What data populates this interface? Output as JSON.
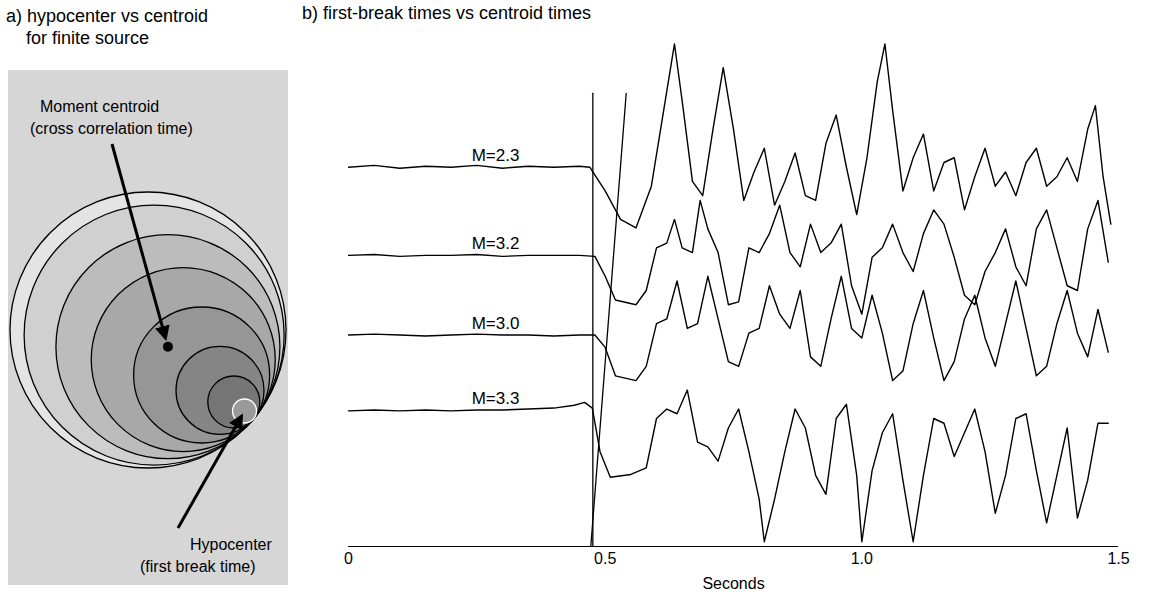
{
  "diagram": {
    "title": "a) hypocenter vs centroid for finite source",
    "centroid_label": [
      "Moment centroid",
      "(cross correlation time)"
    ],
    "hypocenter_label": [
      "Hypocenter",
      "(first break time)"
    ]
  },
  "chart_data": {
    "type": "line",
    "title": "b) first-break times vs centroid times",
    "xlabel": "Seconds",
    "xlim": [
      0,
      1.5
    ],
    "xticks": [
      0,
      0.5,
      {
        "value": 1,
        "label": "1.0"
      },
      1.5
    ],
    "ylim": [
      0,
      54
    ],
    "tick_labels": "x",
    "series": [
      {
        "name": "M=2.3",
        "color": "#000000",
        "x": [
          0.0,
          0.05,
          0.1,
          0.15,
          0.2,
          0.25,
          0.3,
          0.35,
          0.4,
          0.45,
          0.47,
          0.5,
          0.53,
          0.56,
          0.59,
          0.62,
          0.635,
          0.65,
          0.67,
          0.69,
          0.71,
          0.73,
          0.75,
          0.77,
          0.79,
          0.81,
          0.83,
          0.85,
          0.87,
          0.89,
          0.91,
          0.93,
          0.95,
          0.97,
          0.99,
          1.01,
          1.03,
          1.045,
          1.06,
          1.08,
          1.1,
          1.12,
          1.14,
          1.16,
          1.18,
          1.2,
          1.22,
          1.24,
          1.26,
          1.28,
          1.3,
          1.32,
          1.34,
          1.36,
          1.38,
          1.4,
          1.42,
          1.44,
          1.455,
          1.47,
          1.485
        ],
        "values": [
          40.0,
          40.2,
          39.9,
          40.1,
          40.0,
          40.2,
          39.9,
          40.1,
          40.0,
          40.1,
          40.0,
          37.5,
          34.5,
          33.6,
          38.0,
          48.0,
          53.0,
          47.0,
          38.5,
          37.0,
          44.0,
          50.5,
          44.0,
          36.5,
          39.5,
          42.0,
          36.0,
          38.5,
          41.5,
          37.0,
          36.5,
          42.5,
          45.5,
          40.0,
          35.0,
          41.0,
          49.0,
          53.0,
          46.0,
          37.5,
          41.0,
          43.5,
          37.5,
          40.5,
          41.0,
          35.5,
          39.0,
          42.0,
          38.0,
          39.5,
          37.0,
          40.5,
          42.0,
          38.0,
          39.0,
          41.0,
          38.5,
          44.0,
          46.5,
          39.0,
          34.0
        ]
      },
      {
        "name": "M=3.2",
        "color": "#000000",
        "x": [
          0.0,
          0.05,
          0.1,
          0.15,
          0.2,
          0.25,
          0.3,
          0.35,
          0.4,
          0.45,
          0.48,
          0.5,
          0.52,
          0.56,
          0.58,
          0.6,
          0.62,
          0.635,
          0.65,
          0.67,
          0.685,
          0.7,
          0.72,
          0.74,
          0.76,
          0.78,
          0.8,
          0.82,
          0.84,
          0.86,
          0.88,
          0.9,
          0.92,
          0.94,
          0.96,
          0.98,
          1.0,
          1.02,
          1.04,
          1.06,
          1.08,
          1.1,
          1.12,
          1.14,
          1.16,
          1.18,
          1.2,
          1.22,
          1.24,
          1.26,
          1.28,
          1.3,
          1.32,
          1.34,
          1.36,
          1.38,
          1.4,
          1.42,
          1.44,
          1.46,
          1.48
        ],
        "values": [
          30.7,
          30.8,
          30.6,
          30.7,
          30.7,
          30.8,
          30.6,
          30.7,
          30.7,
          30.7,
          30.6,
          28.5,
          26.0,
          25.5,
          27.0,
          31.5,
          32.0,
          34.5,
          31.5,
          31.0,
          36.5,
          33.5,
          31.0,
          25.5,
          25.8,
          31.5,
          31.0,
          33.0,
          36.0,
          31.0,
          29.5,
          34.0,
          31.0,
          32.0,
          34.0,
          27.5,
          24.5,
          30.5,
          31.5,
          34.0,
          31.0,
          29.0,
          33.0,
          35.5,
          34.0,
          30.5,
          26.5,
          25.5,
          29.0,
          31.0,
          33.5,
          29.5,
          27.5,
          33.5,
          35.5,
          31.5,
          27.5,
          27.0,
          33.5,
          36.5,
          30.0
        ]
      },
      {
        "name": "M=3.0",
        "color": "#000000",
        "x": [
          0.0,
          0.05,
          0.1,
          0.15,
          0.2,
          0.25,
          0.3,
          0.35,
          0.4,
          0.45,
          0.48,
          0.5,
          0.52,
          0.56,
          0.58,
          0.6,
          0.62,
          0.64,
          0.66,
          0.68,
          0.7,
          0.72,
          0.74,
          0.76,
          0.78,
          0.8,
          0.82,
          0.84,
          0.86,
          0.88,
          0.9,
          0.92,
          0.94,
          0.96,
          0.98,
          1.0,
          1.02,
          1.04,
          1.06,
          1.08,
          1.1,
          1.12,
          1.14,
          1.16,
          1.18,
          1.2,
          1.22,
          1.24,
          1.26,
          1.28,
          1.3,
          1.32,
          1.34,
          1.36,
          1.38,
          1.4,
          1.42,
          1.44,
          1.46,
          1.48
        ],
        "values": [
          22.3,
          22.4,
          22.3,
          22.2,
          22.3,
          22.4,
          22.3,
          22.3,
          22.2,
          22.3,
          22.3,
          21.0,
          18.0,
          17.5,
          19.0,
          23.5,
          24.0,
          28.0,
          23.0,
          23.5,
          28.5,
          24.0,
          19.5,
          19.0,
          22.5,
          23.0,
          27.5,
          24.5,
          23.0,
          27.0,
          20.0,
          19.0,
          24.0,
          28.5,
          23.0,
          22.0,
          26.5,
          22.5,
          17.5,
          18.5,
          23.5,
          27.0,
          22.0,
          17.5,
          19.5,
          24.0,
          26.5,
          22.0,
          19.0,
          23.5,
          28.0,
          23.0,
          18.0,
          19.0,
          23.5,
          27.0,
          22.5,
          20.0,
          25.0,
          20.5
        ]
      },
      {
        "name": "M=3.3",
        "color": "#000000",
        "x": [
          0.0,
          0.05,
          0.1,
          0.15,
          0.2,
          0.25,
          0.3,
          0.35,
          0.4,
          0.44,
          0.46,
          0.475,
          0.49,
          0.51,
          0.55,
          0.58,
          0.6,
          0.62,
          0.64,
          0.66,
          0.68,
          0.7,
          0.72,
          0.74,
          0.76,
          0.78,
          0.8,
          0.81,
          0.83,
          0.85,
          0.87,
          0.89,
          0.91,
          0.93,
          0.95,
          0.97,
          0.99,
          1.0,
          1.02,
          1.04,
          1.06,
          1.08,
          1.1,
          1.12,
          1.14,
          1.16,
          1.18,
          1.2,
          1.22,
          1.24,
          1.26,
          1.28,
          1.3,
          1.32,
          1.34,
          1.36,
          1.38,
          1.4,
          1.42,
          1.44,
          1.46,
          1.48
        ],
        "values": [
          14.3,
          14.4,
          14.3,
          14.4,
          14.3,
          14.4,
          14.4,
          14.5,
          14.6,
          14.9,
          15.2,
          14.6,
          10.0,
          7.3,
          7.6,
          8.3,
          13.5,
          14.5,
          14.0,
          16.5,
          11.0,
          10.5,
          9.0,
          12.5,
          14.5,
          10.0,
          5.0,
          0.5,
          5.0,
          10.0,
          14.5,
          12.5,
          7.5,
          5.5,
          13.5,
          15.0,
          7.5,
          0.5,
          8.0,
          12.0,
          14.0,
          7.0,
          0.5,
          7.5,
          13.5,
          13.0,
          9.5,
          12.0,
          14.5,
          10.0,
          3.5,
          7.5,
          13.5,
          14.0,
          8.0,
          2.5,
          7.5,
          12.5,
          3.0,
          7.0,
          13.0,
          13.0
        ]
      }
    ],
    "lines": [
      {
        "x": [
          0.476,
          0.476
        ],
        "y": [
          0,
          47.8
        ]
      },
      {
        "x": [
          0.472,
          0.541
        ],
        "y": [
          0,
          47.8
        ]
      }
    ]
  }
}
